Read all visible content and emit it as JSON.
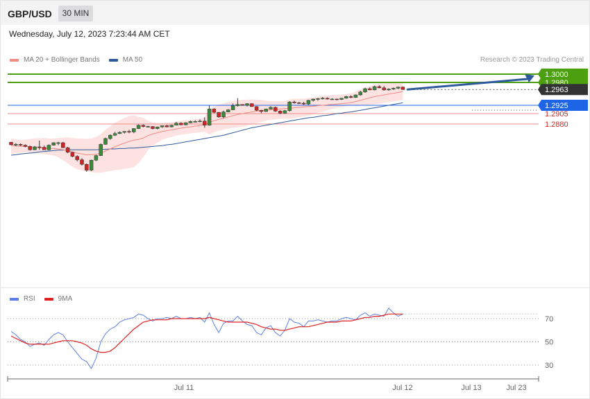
{
  "header": {
    "symbol": "GBP/USD",
    "timeframe": "30 MIN"
  },
  "datetime": "Wednesday, July 12, 2023 7:23:44 AM CET",
  "credit": "Research © 2023 Trading Central",
  "legend": {
    "main": [
      {
        "label": "MA 20 + Bollinger Bands",
        "color": "#f28b82"
      },
      {
        "label": "MA 50",
        "color": "#2d5a9c"
      }
    ],
    "rsi": [
      {
        "label": "RSI",
        "color": "#5b7fe0"
      },
      {
        "label": "9MA",
        "color": "#e02020"
      }
    ]
  },
  "colors": {
    "bull": "#3a8a3a",
    "bear": "#d02525",
    "resistance": "#4ca00f",
    "support": "#f08a8a",
    "pivot": "#1e64e6",
    "current": "#333333",
    "arrow": "#2d5a9c",
    "band": "#fde2e2"
  },
  "price_levels": [
    {
      "value": 1.3,
      "label": "1.3000",
      "kind": "resistance"
    },
    {
      "value": 1.298,
      "label": "1.2980",
      "kind": "resistance"
    },
    {
      "value": 1.2963,
      "label": "1.2963",
      "kind": "current"
    },
    {
      "value": 1.2925,
      "label": "1.2925",
      "kind": "pivot"
    },
    {
      "value": 1.2905,
      "label": "1.2905",
      "kind": "support"
    },
    {
      "value": 1.288,
      "label": "1.2880",
      "kind": "support"
    }
  ],
  "x_labels": [
    "Jul 11",
    "Jul 11",
    "Jul 12",
    "Jul 13",
    "Jul 23"
  ],
  "chart_data": [
    {
      "type": "candlestick",
      "title": "GBP/USD 30 MIN",
      "ylim": [
        1.276,
        1.3015
      ],
      "ohlc": [
        [
          1.2836,
          1.2837,
          1.2829,
          1.283
        ],
        [
          1.283,
          1.2834,
          1.2827,
          1.2831
        ],
        [
          1.2831,
          1.2833,
          1.2827,
          1.2829
        ],
        [
          1.2829,
          1.2831,
          1.2824,
          1.2826
        ],
        [
          1.2826,
          1.2828,
          1.2816,
          1.2818
        ],
        [
          1.2818,
          1.2827,
          1.2817,
          1.2825
        ],
        [
          1.2825,
          1.284,
          1.2818,
          1.2824
        ],
        [
          1.2824,
          1.2828,
          1.2818,
          1.2818
        ],
        [
          1.2818,
          1.2831,
          1.2817,
          1.2829
        ],
        [
          1.2829,
          1.2836,
          1.2828,
          1.2835
        ],
        [
          1.2835,
          1.2837,
          1.2829,
          1.2835
        ],
        [
          1.2835,
          1.2837,
          1.2822,
          1.2823
        ],
        [
          1.2823,
          1.2825,
          1.281,
          1.2812
        ],
        [
          1.2812,
          1.2813,
          1.28,
          1.2802
        ],
        [
          1.2802,
          1.2805,
          1.279,
          1.2794
        ],
        [
          1.2794,
          1.2798,
          1.278,
          1.2783
        ],
        [
          1.2783,
          1.2785,
          1.2765,
          1.2769
        ],
        [
          1.2769,
          1.2794,
          1.2767,
          1.2793
        ],
        [
          1.2793,
          1.2806,
          1.2791,
          1.2804
        ],
        [
          1.2804,
          1.2833,
          1.2803,
          1.2831
        ],
        [
          1.2831,
          1.2847,
          1.283,
          1.2845
        ],
        [
          1.2845,
          1.2855,
          1.2842,
          1.2853
        ],
        [
          1.2853,
          1.2861,
          1.2851,
          1.2857
        ],
        [
          1.2857,
          1.2862,
          1.2856,
          1.286
        ],
        [
          1.286,
          1.2863,
          1.2857,
          1.2862
        ],
        [
          1.2862,
          1.2866,
          1.2858,
          1.2861
        ],
        [
          1.2861,
          1.287,
          1.2858,
          1.2869
        ],
        [
          1.2869,
          1.2879,
          1.2868,
          1.2877
        ],
        [
          1.2877,
          1.2879,
          1.2872,
          1.2874
        ],
        [
          1.2874,
          1.2876,
          1.2872,
          1.2874
        ],
        [
          1.2874,
          1.2875,
          1.2867,
          1.2869
        ],
        [
          1.2869,
          1.2874,
          1.2867,
          1.2873
        ],
        [
          1.2873,
          1.2876,
          1.2871,
          1.2876
        ],
        [
          1.2876,
          1.2878,
          1.2872,
          1.2873
        ],
        [
          1.2873,
          1.2878,
          1.2872,
          1.2877
        ],
        [
          1.2877,
          1.2885,
          1.2877,
          1.2882
        ],
        [
          1.2882,
          1.2884,
          1.2877,
          1.2878
        ],
        [
          1.2878,
          1.2884,
          1.2877,
          1.2883
        ],
        [
          1.2883,
          1.2888,
          1.2882,
          1.2886
        ],
        [
          1.2886,
          1.2889,
          1.2884,
          1.2886
        ],
        [
          1.2886,
          1.2891,
          1.2884,
          1.2887
        ],
        [
          1.2887,
          1.2896,
          1.2871,
          1.2877
        ],
        [
          1.2877,
          1.2925,
          1.2876,
          1.2916
        ],
        [
          1.2916,
          1.2918,
          1.2906,
          1.2908
        ],
        [
          1.2908,
          1.2909,
          1.2895,
          1.2897
        ],
        [
          1.2897,
          1.2912,
          1.2894,
          1.2909
        ],
        [
          1.2909,
          1.2916,
          1.2908,
          1.2914
        ],
        [
          1.2914,
          1.2929,
          1.2914,
          1.2924
        ],
        [
          1.2924,
          1.2942,
          1.2922,
          1.2927
        ],
        [
          1.2927,
          1.2927,
          1.2924,
          1.2925
        ],
        [
          1.2925,
          1.293,
          1.2922,
          1.2929
        ],
        [
          1.2929,
          1.293,
          1.2921,
          1.2922
        ],
        [
          1.2922,
          1.2923,
          1.2911,
          1.2913
        ],
        [
          1.2913,
          1.2914,
          1.2906,
          1.291
        ],
        [
          1.291,
          1.2917,
          1.2909,
          1.2916
        ],
        [
          1.2916,
          1.2923,
          1.2915,
          1.292
        ],
        [
          1.292,
          1.2922,
          1.2909,
          1.2911
        ],
        [
          1.2911,
          1.2913,
          1.2904,
          1.2906
        ],
        [
          1.2906,
          1.2914,
          1.2905,
          1.2912
        ],
        [
          1.2912,
          1.2935,
          1.291,
          1.2933
        ],
        [
          1.2933,
          1.2936,
          1.2929,
          1.2931
        ],
        [
          1.2931,
          1.2933,
          1.2928,
          1.293
        ],
        [
          1.293,
          1.2933,
          1.2926,
          1.2928
        ],
        [
          1.2928,
          1.2938,
          1.2926,
          1.2937
        ],
        [
          1.2937,
          1.2941,
          1.2934,
          1.294
        ],
        [
          1.294,
          1.2943,
          1.2936,
          1.2941
        ],
        [
          1.2941,
          1.2945,
          1.2939,
          1.2942
        ],
        [
          1.2942,
          1.2944,
          1.2939,
          1.294
        ],
        [
          1.294,
          1.2942,
          1.2938,
          1.294
        ],
        [
          1.294,
          1.2941,
          1.2937,
          1.2939
        ],
        [
          1.2939,
          1.2943,
          1.2938,
          1.2942
        ],
        [
          1.2942,
          1.2948,
          1.2941,
          1.2946
        ],
        [
          1.2946,
          1.2949,
          1.2942,
          1.2944
        ],
        [
          1.2944,
          1.2951,
          1.2943,
          1.295
        ],
        [
          1.295,
          1.296,
          1.2948,
          1.2957
        ],
        [
          1.2957,
          1.2967,
          1.2955,
          1.2965
        ],
        [
          1.2965,
          1.2968,
          1.2961,
          1.2962
        ],
        [
          1.2962,
          1.2972,
          1.2961,
          1.297
        ],
        [
          1.297,
          1.2973,
          1.2966,
          1.2967
        ],
        [
          1.2967,
          1.2971,
          1.296,
          1.2962
        ],
        [
          1.2962,
          1.2966,
          1.296,
          1.2964
        ],
        [
          1.2964,
          1.2968,
          1.2962,
          1.2966
        ],
        [
          1.2966,
          1.297,
          1.2964,
          1.2969
        ],
        [
          1.2969,
          1.297,
          1.2962,
          1.2963
        ]
      ],
      "bb_upper": [
        1.2846,
        1.2843,
        1.2842,
        1.2842,
        1.2844,
        1.2845,
        1.2846,
        1.2846,
        1.2845,
        1.2845,
        1.2846,
        1.2847,
        1.2848,
        1.2846,
        1.2845,
        1.2845,
        1.2844,
        1.2845,
        1.2849,
        1.2856,
        1.2866,
        1.2875,
        1.2883,
        1.2889,
        1.2895,
        1.2899,
        1.2901,
        1.2897,
        1.2895,
        1.2888,
        1.2884,
        1.2882,
        1.2882,
        1.2883,
        1.2884,
        1.2886,
        1.2888,
        1.2889,
        1.289,
        1.2891,
        1.2893,
        1.2896,
        1.2916,
        1.2922,
        1.2926,
        1.293,
        1.2933,
        1.2935,
        1.2937,
        1.2938,
        1.2939,
        1.2939,
        1.2939,
        1.2938,
        1.2936,
        1.2935,
        1.2935,
        1.2935,
        1.2935,
        1.2939,
        1.2941,
        1.2941,
        1.2941,
        1.2943,
        1.2944,
        1.2946,
        1.2948,
        1.2949,
        1.295,
        1.295,
        1.2951,
        1.2952,
        1.2954,
        1.2958,
        1.2963,
        1.2968,
        1.2971,
        1.2975,
        1.2977,
        1.2978,
        1.2979,
        1.2981,
        1.2982,
        1.2982
      ],
      "bb_lower": [
        1.2808,
        1.281,
        1.2811,
        1.2812,
        1.2811,
        1.281,
        1.2809,
        1.2808,
        1.2806,
        1.2804,
        1.28,
        1.2793,
        1.2785,
        1.2777,
        1.2771,
        1.2768,
        1.2766,
        1.2764,
        1.2763,
        1.2763,
        1.2765,
        1.2767,
        1.2769,
        1.277,
        1.2772,
        1.2774,
        1.2776,
        1.2786,
        1.28,
        1.2817,
        1.2828,
        1.2835,
        1.2842,
        1.2846,
        1.2849,
        1.2852,
        1.2854,
        1.2856,
        1.2857,
        1.2859,
        1.286,
        1.2861,
        1.2855,
        1.286,
        1.2864,
        1.2866,
        1.2869,
        1.2871,
        1.2872,
        1.2873,
        1.2876,
        1.2879,
        1.2882,
        1.2885,
        1.2888,
        1.289,
        1.2891,
        1.2892,
        1.2893,
        1.2893,
        1.2894,
        1.2896,
        1.2898,
        1.29,
        1.2903,
        1.2907,
        1.291,
        1.2913,
        1.2916,
        1.2919,
        1.2921,
        1.2923,
        1.2925,
        1.2925,
        1.2925,
        1.2925,
        1.2926,
        1.2927,
        1.2929,
        1.2931,
        1.2933,
        1.2934,
        1.2936,
        1.2938
      ],
      "ma20": [
        1.2828,
        1.2827,
        1.2826,
        1.2826,
        1.2825,
        1.2824,
        1.2823,
        1.2822,
        1.2821,
        1.2821,
        1.282,
        1.2818,
        1.2816,
        1.2813,
        1.281,
        1.2808,
        1.2806,
        1.2806,
        1.2807,
        1.281,
        1.2815,
        1.282,
        1.2825,
        1.283,
        1.2834,
        1.2838,
        1.2841,
        1.2843,
        1.2846,
        1.2852,
        1.2856,
        1.2859,
        1.2862,
        1.2864,
        1.2866,
        1.2868,
        1.287,
        1.2872,
        1.2873,
        1.2875,
        1.2876,
        1.2878,
        1.2884,
        1.2888,
        1.2891,
        1.2894,
        1.2897,
        1.29,
        1.2903,
        1.2905,
        1.2907,
        1.2909,
        1.2911,
        1.2912,
        1.2913,
        1.2914,
        1.2915,
        1.2916,
        1.2917,
        1.2918,
        1.2919,
        1.292,
        1.2921,
        1.2922,
        1.2923,
        1.2924,
        1.2925,
        1.2926,
        1.2927,
        1.2928,
        1.2929,
        1.293,
        1.2931,
        1.2934,
        1.2937,
        1.294,
        1.2943,
        1.2946,
        1.2948,
        1.295,
        1.2952,
        1.2954,
        1.2956,
        1.2958
      ],
      "ma50": [
        1.2805,
        1.2806,
        1.2808,
        1.2809,
        1.281,
        1.2811,
        1.2813,
        1.2814,
        1.2815,
        1.2816,
        1.2817,
        1.2817,
        1.2818,
        1.2818,
        1.2818,
        1.2818,
        1.2818,
        1.2818,
        1.2818,
        1.2819,
        1.2819,
        1.282,
        1.282,
        1.2821,
        1.2821,
        1.2822,
        1.2822,
        1.2823,
        1.2824,
        1.2825,
        1.2826,
        1.2827,
        1.2828,
        1.283,
        1.2831,
        1.2833,
        1.2835,
        1.2837,
        1.2839,
        1.2841,
        1.2843,
        1.2845,
        1.2847,
        1.2849,
        1.2851,
        1.2853,
        1.2856,
        1.2859,
        1.2862,
        1.2865,
        1.2868,
        1.2871,
        1.2873,
        1.2875,
        1.2877,
        1.2879,
        1.2881,
        1.2883,
        1.2885,
        1.2887,
        1.2889,
        1.2891,
        1.2893,
        1.2895,
        1.2896,
        1.2898,
        1.29,
        1.2901,
        1.2903,
        1.2905,
        1.2906,
        1.2908,
        1.2909,
        1.2911,
        1.2913,
        1.2915,
        1.2917,
        1.2919,
        1.2921,
        1.2923,
        1.2925,
        1.2927,
        1.2929,
        1.2931
      ],
      "forecast_target": 1.3
    },
    {
      "type": "line",
      "title": "RSI",
      "ylim": [
        0,
        100
      ],
      "reference_lines": [
        70,
        50,
        30
      ],
      "series": [
        {
          "name": "RSI",
          "values": [
            59,
            56,
            52,
            50,
            46,
            48,
            49,
            47,
            52,
            56,
            58,
            56,
            50,
            45,
            40,
            35,
            33,
            27,
            36,
            50,
            57,
            61,
            63,
            67,
            69,
            70,
            71,
            74,
            73,
            70,
            68,
            70,
            70,
            71,
            70,
            72,
            70,
            70,
            71,
            70,
            71,
            67,
            75,
            65,
            58,
            66,
            68,
            68,
            72,
            68,
            65,
            64,
            58,
            56,
            62,
            64,
            58,
            55,
            60,
            70,
            67,
            66,
            63,
            68,
            68,
            69,
            68,
            67,
            68,
            68,
            70,
            71,
            70,
            69,
            73,
            75,
            72,
            74,
            73,
            72,
            79,
            75,
            72,
            74
          ]
        },
        {
          "name": "9MA",
          "values": [
            55,
            53,
            51,
            49,
            48,
            48,
            48,
            48,
            48,
            49,
            50,
            51,
            51,
            51,
            50,
            49,
            47,
            44,
            42,
            41,
            41,
            42,
            45,
            49,
            53,
            57,
            61,
            64,
            67,
            68,
            69,
            69,
            69,
            69,
            70,
            70,
            70,
            70,
            70,
            70,
            70,
            70,
            71,
            70,
            69,
            68,
            67,
            67,
            67,
            67,
            67,
            66,
            65,
            63,
            62,
            61,
            61,
            60,
            60,
            61,
            62,
            63,
            63,
            63,
            64,
            65,
            66,
            67,
            67,
            67,
            68,
            68,
            68,
            69,
            70,
            71,
            71,
            72,
            72,
            73,
            74,
            74,
            74,
            74
          ]
        }
      ]
    }
  ]
}
